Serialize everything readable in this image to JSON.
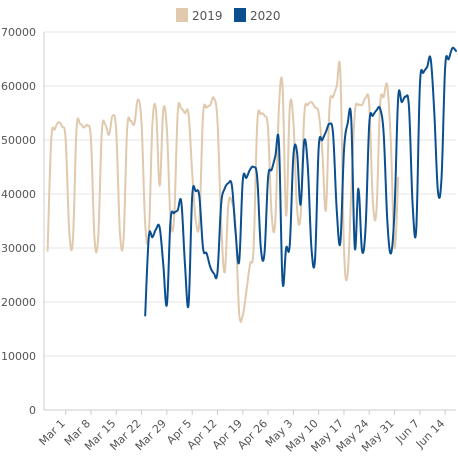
{
  "chart_data": {
    "type": "line",
    "title": "",
    "xlabel": "",
    "ylabel": "",
    "ylim": [
      0,
      70000
    ],
    "xlim": [
      "2020-02-24",
      "2020-06-17"
    ],
    "y_ticks": [
      0,
      10000,
      20000,
      30000,
      40000,
      50000,
      60000,
      70000
    ],
    "y_tick_labels": [
      "0",
      "10000",
      "20000",
      "30000",
      "40000",
      "50000",
      "60000",
      "70000"
    ],
    "x_ticks": [
      "2020-03-01",
      "2020-03-08",
      "2020-03-15",
      "2020-03-22",
      "2020-03-29",
      "2020-04-05",
      "2020-04-12",
      "2020-04-19",
      "2020-04-26",
      "2020-05-03",
      "2020-05-10",
      "2020-05-17",
      "2020-05-24",
      "2020-05-31",
      "2020-06-07",
      "2020-06-14"
    ],
    "x_tick_labels": [
      "Mar 1",
      "Mar 8",
      "Mar 15",
      "Mar 22",
      "Mar 29",
      "Apr 5",
      "Apr 12",
      "Apr 19",
      "Apr 26",
      "May 3",
      "May 10",
      "May 17",
      "May 24",
      "May 31",
      "Jun 7",
      "Jun 14"
    ],
    "grid": true,
    "legend_position": "top-center",
    "series": [
      {
        "name": "2019",
        "color": "#e0c9ad",
        "points": [
          [
            "2020-02-25",
            29500
          ],
          [
            "2020-02-26",
            50000
          ],
          [
            "2020-02-27",
            52000
          ],
          [
            "2020-02-28",
            53300
          ],
          [
            "2020-02-29",
            52500
          ],
          [
            "2020-03-01",
            50000
          ],
          [
            "2020-03-02",
            33000
          ],
          [
            "2020-03-03",
            31500
          ],
          [
            "2020-03-04",
            52000
          ],
          [
            "2020-03-05",
            53000
          ],
          [
            "2020-03-06",
            52300
          ],
          [
            "2020-03-07",
            52700
          ],
          [
            "2020-03-08",
            50000
          ],
          [
            "2020-03-09",
            31500
          ],
          [
            "2020-03-10",
            32000
          ],
          [
            "2020-03-11",
            51500
          ],
          [
            "2020-03-12",
            52800
          ],
          [
            "2020-03-13",
            51000
          ],
          [
            "2020-03-14",
            54500
          ],
          [
            "2020-03-15",
            51500
          ],
          [
            "2020-03-16",
            33000
          ],
          [
            "2020-03-17",
            31500
          ],
          [
            "2020-03-18",
            52000
          ],
          [
            "2020-03-19",
            53500
          ],
          [
            "2020-03-20",
            53000
          ],
          [
            "2020-03-21",
            57500
          ],
          [
            "2020-03-22",
            53000
          ],
          [
            "2020-03-23",
            34500
          ],
          [
            "2020-03-24",
            32500
          ],
          [
            "2020-03-25",
            53000
          ],
          [
            "2020-03-26",
            55500
          ],
          [
            "2020-03-27",
            41500
          ],
          [
            "2020-03-28",
            55500
          ],
          [
            "2020-03-29",
            52000
          ],
          [
            "2020-03-30",
            35500
          ],
          [
            "2020-03-31",
            35500
          ],
          [
            "2020-04-01",
            55000
          ],
          [
            "2020-04-02",
            55800
          ],
          [
            "2020-04-03",
            55000
          ],
          [
            "2020-04-04",
            54800
          ],
          [
            "2020-04-05",
            44000
          ],
          [
            "2020-04-06",
            35000
          ],
          [
            "2020-04-07",
            35000
          ],
          [
            "2020-04-08",
            54500
          ],
          [
            "2020-04-09",
            56000
          ],
          [
            "2020-04-10",
            56500
          ],
          [
            "2020-04-11",
            57800
          ],
          [
            "2020-04-12",
            53500
          ],
          [
            "2020-04-13",
            35000
          ],
          [
            "2020-04-14",
            25500
          ],
          [
            "2020-04-15",
            38000
          ],
          [
            "2020-04-16",
            38500
          ],
          [
            "2020-04-17",
            34000
          ],
          [
            "2020-04-18",
            18000
          ],
          [
            "2020-04-19",
            17500
          ],
          [
            "2020-04-20",
            22000
          ],
          [
            "2020-04-21",
            27000
          ],
          [
            "2020-04-22",
            30000
          ],
          [
            "2020-04-23",
            53000
          ],
          [
            "2020-04-24",
            54800
          ],
          [
            "2020-04-25",
            54500
          ],
          [
            "2020-04-26",
            52000
          ],
          [
            "2020-04-27",
            36000
          ],
          [
            "2020-04-28",
            35000
          ],
          [
            "2020-04-29",
            56000
          ],
          [
            "2020-04-30",
            60000
          ],
          [
            "2020-05-01",
            36000
          ],
          [
            "2020-05-02",
            56000
          ],
          [
            "2020-05-03",
            53500
          ],
          [
            "2020-05-04",
            37500
          ],
          [
            "2020-05-05",
            36000
          ],
          [
            "2020-05-06",
            54500
          ],
          [
            "2020-05-07",
            56500
          ],
          [
            "2020-05-08",
            57000
          ],
          [
            "2020-05-09",
            56000
          ],
          [
            "2020-05-10",
            55000
          ],
          [
            "2020-05-11",
            48000
          ],
          [
            "2020-05-12",
            37000
          ],
          [
            "2020-05-13",
            56000
          ],
          [
            "2020-05-14",
            58000
          ],
          [
            "2020-05-15",
            60000
          ],
          [
            "2020-05-16",
            62500
          ],
          [
            "2020-05-17",
            30000
          ],
          [
            "2020-05-18",
            25000
          ],
          [
            "2020-05-19",
            40000
          ],
          [
            "2020-05-20",
            55000
          ],
          [
            "2020-05-21",
            56500
          ],
          [
            "2020-05-22",
            56500
          ],
          [
            "2020-05-23",
            57800
          ],
          [
            "2020-05-24",
            56500
          ],
          [
            "2020-05-25",
            38500
          ],
          [
            "2020-05-26",
            37000
          ],
          [
            "2020-05-27",
            56500
          ],
          [
            "2020-05-28",
            58000
          ],
          [
            "2020-05-29",
            60000
          ],
          [
            "2020-05-30",
            49000
          ],
          [
            "2020-05-31",
            30000
          ],
          [
            "2020-06-01",
            43000
          ]
        ]
      },
      {
        "name": "2020",
        "color": "#0b4f8f",
        "points": [
          [
            "2020-03-23",
            17500
          ],
          [
            "2020-03-24",
            32000
          ],
          [
            "2020-03-25",
            32000
          ],
          [
            "2020-03-26",
            33500
          ],
          [
            "2020-03-27",
            33800
          ],
          [
            "2020-03-28",
            27000
          ],
          [
            "2020-03-29",
            19500
          ],
          [
            "2020-03-30",
            35000
          ],
          [
            "2020-03-31",
            36500
          ],
          [
            "2020-04-01",
            37000
          ],
          [
            "2020-04-02",
            38500
          ],
          [
            "2020-04-03",
            27000
          ],
          [
            "2020-04-04",
            19500
          ],
          [
            "2020-04-05",
            39500
          ],
          [
            "2020-04-06",
            40500
          ],
          [
            "2020-04-07",
            39500
          ],
          [
            "2020-04-08",
            30000
          ],
          [
            "2020-04-09",
            29000
          ],
          [
            "2020-04-10",
            26500
          ],
          [
            "2020-04-11",
            25300
          ],
          [
            "2020-04-12",
            25500
          ],
          [
            "2020-04-13",
            38000
          ],
          [
            "2020-04-14",
            41000
          ],
          [
            "2020-04-15",
            42000
          ],
          [
            "2020-04-16",
            41500
          ],
          [
            "2020-04-17",
            33000
          ],
          [
            "2020-04-18",
            27500
          ],
          [
            "2020-04-19",
            42500
          ],
          [
            "2020-04-20",
            43000
          ],
          [
            "2020-04-21",
            44500
          ],
          [
            "2020-04-22",
            45000
          ],
          [
            "2020-04-23",
            43000
          ],
          [
            "2020-04-24",
            30000
          ],
          [
            "2020-04-25",
            29000
          ],
          [
            "2020-04-26",
            43000
          ],
          [
            "2020-04-27",
            44500
          ],
          [
            "2020-04-28",
            47000
          ],
          [
            "2020-04-29",
            49500
          ],
          [
            "2020-04-30",
            23800
          ],
          [
            "2020-05-01",
            30000
          ],
          [
            "2020-05-02",
            30500
          ],
          [
            "2020-05-03",
            47000
          ],
          [
            "2020-05-04",
            47800
          ],
          [
            "2020-05-05",
            38000
          ],
          [
            "2020-05-06",
            49800
          ],
          [
            "2020-05-07",
            45000
          ],
          [
            "2020-05-08",
            30000
          ],
          [
            "2020-05-09",
            28000
          ],
          [
            "2020-05-10",
            48500
          ],
          [
            "2020-05-11",
            50000
          ],
          [
            "2020-05-12",
            51500
          ],
          [
            "2020-05-13",
            53000
          ],
          [
            "2020-05-14",
            51000
          ],
          [
            "2020-05-15",
            37000
          ],
          [
            "2020-05-16",
            31000
          ],
          [
            "2020-05-17",
            48000
          ],
          [
            "2020-05-18",
            53000
          ],
          [
            "2020-05-19",
            54000
          ],
          [
            "2020-05-20",
            30000
          ],
          [
            "2020-05-21",
            41000
          ],
          [
            "2020-05-22",
            29500
          ],
          [
            "2020-05-23",
            34000
          ],
          [
            "2020-05-24",
            53000
          ],
          [
            "2020-05-25",
            54500
          ],
          [
            "2020-05-26",
            55500
          ],
          [
            "2020-05-27",
            55800
          ],
          [
            "2020-05-28",
            51000
          ],
          [
            "2020-05-29",
            35000
          ],
          [
            "2020-05-30",
            29000
          ],
          [
            "2020-05-31",
            37000
          ],
          [
            "2020-06-01",
            57800
          ],
          [
            "2020-06-02",
            57000
          ],
          [
            "2020-06-03",
            58000
          ],
          [
            "2020-06-04",
            56000
          ],
          [
            "2020-06-05",
            38000
          ],
          [
            "2020-06-06",
            33500
          ],
          [
            "2020-06-07",
            60000
          ],
          [
            "2020-06-08",
            62500
          ],
          [
            "2020-06-09",
            63500
          ],
          [
            "2020-06-10",
            65000
          ],
          [
            "2020-06-11",
            55000
          ],
          [
            "2020-06-12",
            40500
          ],
          [
            "2020-06-13",
            43000
          ],
          [
            "2020-06-14",
            63500
          ],
          [
            "2020-06-15",
            65000
          ],
          [
            "2020-06-16",
            67000
          ],
          [
            "2020-06-17",
            66500
          ]
        ]
      }
    ]
  }
}
